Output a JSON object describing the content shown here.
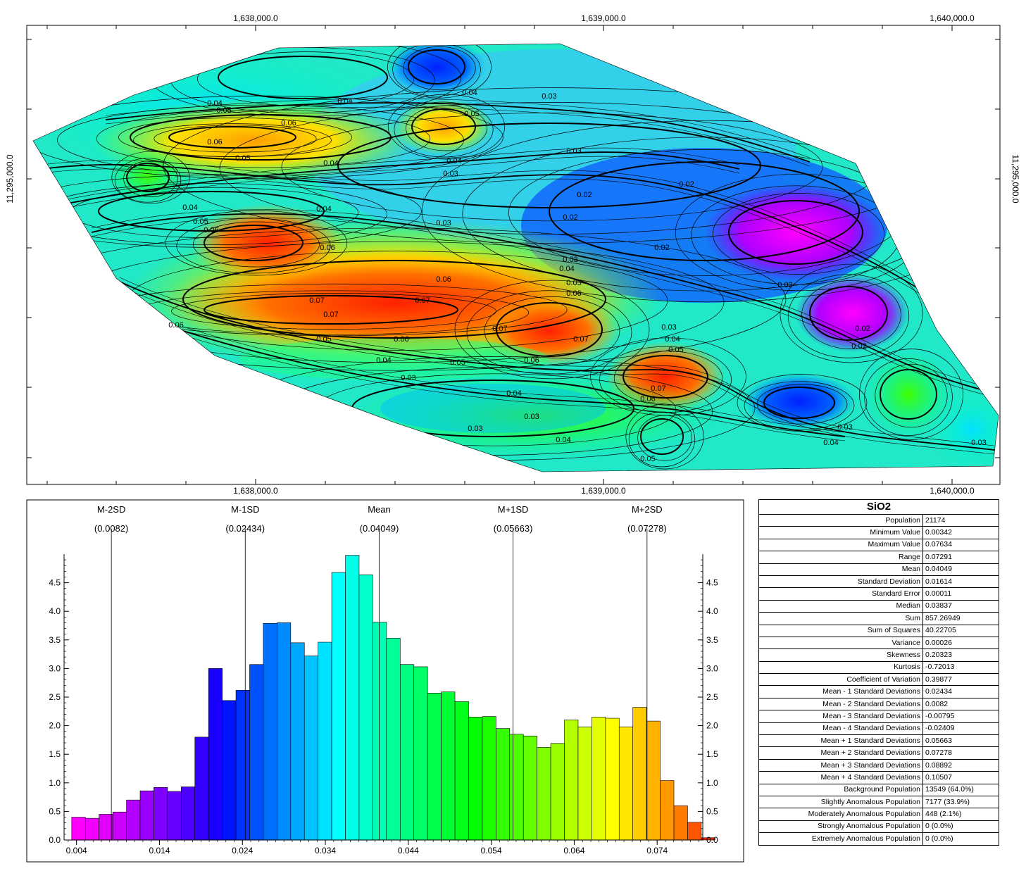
{
  "map": {
    "x_ticks": [
      "1,638,000.0",
      "1,639,000.0",
      "1,640,000.0"
    ],
    "y_ticks": [
      "11,295,000.0",
      "11,295,000.0"
    ],
    "contour_labels": [
      "0.02",
      "0.03",
      "0.04",
      "0.05",
      "0.06",
      "0.07"
    ],
    "colors": {
      "low": "#ff00ff",
      "mid": "#00ffff",
      "high": "#ff2000"
    }
  },
  "chart_data": {
    "type": "bar",
    "title": "",
    "xlabel": "",
    "ylabel": "",
    "x_tick_labels": [
      "0.004",
      "0.014",
      "0.024",
      "0.034",
      "0.044",
      "0.054",
      "0.064",
      "0.074"
    ],
    "y_tick_labels": [
      "0.0",
      "0.5",
      "1.0",
      "1.5",
      "2.0",
      "2.5",
      "3.0",
      "3.5",
      "4.0",
      "4.5"
    ],
    "xlim": [
      0.0025,
      0.0795
    ],
    "ylim": [
      0,
      5.0
    ],
    "bin_start": 0.00342,
    "bin_width": 0.00165,
    "values": [
      0.4,
      0.38,
      0.45,
      0.49,
      0.7,
      0.86,
      0.92,
      0.85,
      0.93,
      1.8,
      3.0,
      2.44,
      2.62,
      3.07,
      3.79,
      3.8,
      3.45,
      3.22,
      3.46,
      4.68,
      4.98,
      4.64,
      3.81,
      3.53,
      3.07,
      3.03,
      2.57,
      2.59,
      2.42,
      2.15,
      2.16,
      1.95,
      1.85,
      1.82,
      1.62,
      1.69,
      2.1,
      1.98,
      2.15,
      2.13,
      1.98,
      2.32,
      2.08,
      1.04,
      0.6,
      0.31,
      0.04
    ],
    "bar_colors": [
      "#ff00ff",
      "#f200ff",
      "#e000ff",
      "#cc00ff",
      "#b300ff",
      "#9900ff",
      "#7f00ff",
      "#6600ff",
      "#4d00ff",
      "#3300ff",
      "#1a00ff",
      "#0014ff",
      "#0033ff",
      "#0052ff",
      "#0070ff",
      "#008cff",
      "#00a8ff",
      "#00c4ff",
      "#00e0ff",
      "#00ffff",
      "#00ffe6",
      "#00ffcc",
      "#00ffb3",
      "#00ff99",
      "#00ff80",
      "#00ff66",
      "#00ff4d",
      "#00ff33",
      "#00ff1a",
      "#00ff00",
      "#1aff00",
      "#33ff00",
      "#4dff00",
      "#66ff00",
      "#80ff00",
      "#99ff00",
      "#b3ff00",
      "#ccff00",
      "#e6ff00",
      "#ffff00",
      "#ffe600",
      "#ffcc00",
      "#ffb300",
      "#ff9900",
      "#ff7a00",
      "#ff5500",
      "#ff2000"
    ],
    "reference_lines": [
      {
        "name": "M-2SD",
        "value": "(0.0082)",
        "x": 0.0082
      },
      {
        "name": "M-1SD",
        "value": "(0.02434)",
        "x": 0.02434
      },
      {
        "name": "Mean",
        "value": "(0.04049)",
        "x": 0.04049
      },
      {
        "name": "M+1SD",
        "value": "(0.05663)",
        "x": 0.05663
      },
      {
        "name": "M+2SD",
        "value": "(0.07278)",
        "x": 0.07278
      }
    ]
  },
  "stats": {
    "title": "SiO2",
    "rows": [
      {
        "label": "Population",
        "value": "21174"
      },
      {
        "label": "Minimum Value",
        "value": "0.00342"
      },
      {
        "label": "Maximum Value",
        "value": "0.07634"
      },
      {
        "label": "Range",
        "value": "0.07291"
      },
      {
        "label": "Mean",
        "value": "0.04049"
      },
      {
        "label": "Standard Deviation",
        "value": "0.01614"
      },
      {
        "label": "Standard Error",
        "value": "0.00011"
      },
      {
        "label": "Median",
        "value": "0.03837"
      },
      {
        "label": "Sum",
        "value": "857.26949"
      },
      {
        "label": "Sum of Squares",
        "value": "40.22705"
      },
      {
        "label": "Variance",
        "value": "0.00026"
      },
      {
        "label": "Skewness",
        "value": "0.20323"
      },
      {
        "label": "Kurtosis",
        "value": "-0.72013"
      },
      {
        "label": "Coefficient of Variation",
        "value": "0.39877"
      },
      {
        "label": "Mean - 1 Standard Deviations",
        "value": "0.02434"
      },
      {
        "label": "Mean - 2 Standard Deviations",
        "value": "0.0082"
      },
      {
        "label": "Mean - 3 Standard Deviations",
        "value": "-0.00795"
      },
      {
        "label": "Mean - 4 Standard Deviations",
        "value": "-0.02409"
      },
      {
        "label": "Mean + 1 Standard Deviations",
        "value": "0.05663"
      },
      {
        "label": "Mean + 2 Standard Deviations",
        "value": "0.07278"
      },
      {
        "label": "Mean + 3 Standard Deviations",
        "value": "0.08892"
      },
      {
        "label": "Mean + 4 Standard Deviations",
        "value": "0.10507"
      },
      {
        "label": "Background Population",
        "value": "13549 (64.0%)"
      },
      {
        "label": "Slightly Anomalous Population",
        "value": "7177 (33.9%)"
      },
      {
        "label": "Moderately Anomalous Population",
        "value": "448 (2.1%)"
      },
      {
        "label": "Strongly Anomalous Population",
        "value": "0 (0.0%)"
      },
      {
        "label": "Extremely Anomalous Population",
        "value": "0 (0.0%)"
      }
    ]
  }
}
